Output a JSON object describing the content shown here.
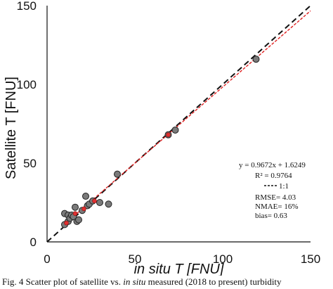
{
  "chart_data": {
    "type": "scatter",
    "xlabel": "in situ T [FNU]",
    "ylabel": "Satellite T [FNU]",
    "xlim": [
      0,
      150
    ],
    "ylim": [
      0,
      150
    ],
    "xticks": [
      "0",
      "50",
      "100",
      "150"
    ],
    "yticks": [
      "0",
      "50",
      "100",
      "150"
    ],
    "grid": false,
    "points": [
      {
        "x": 10,
        "y": 11
      },
      {
        "x": 10,
        "y": 18
      },
      {
        "x": 12,
        "y": 17
      },
      {
        "x": 12,
        "y": 13
      },
      {
        "x": 13,
        "y": 15
      },
      {
        "x": 14,
        "y": 17
      },
      {
        "x": 15,
        "y": 16
      },
      {
        "x": 16,
        "y": 22
      },
      {
        "x": 17,
        "y": 13
      },
      {
        "x": 18,
        "y": 14
      },
      {
        "x": 20,
        "y": 20
      },
      {
        "x": 22,
        "y": 29
      },
      {
        "x": 23,
        "y": 23
      },
      {
        "x": 24,
        "y": 24
      },
      {
        "x": 26,
        "y": 26
      },
      {
        "x": 30,
        "y": 25
      },
      {
        "x": 35,
        "y": 24
      },
      {
        "x": 40,
        "y": 43
      },
      {
        "x": 69,
        "y": 68
      },
      {
        "x": 73,
        "y": 71
      },
      {
        "x": 119,
        "y": 116
      }
    ],
    "red_points": [
      {
        "x": 11,
        "y": 12
      },
      {
        "x": 16,
        "y": 18
      },
      {
        "x": 21,
        "y": 21
      },
      {
        "x": 27,
        "y": 26
      },
      {
        "x": 69,
        "y": 68
      }
    ],
    "fit_line": {
      "slope": 0.9672,
      "intercept": 1.6249,
      "x_range": [
        10,
        150
      ],
      "color": "#e02020"
    },
    "one_to_one": {
      "x_range": [
        0,
        150
      ],
      "color": "#111111"
    },
    "stats": {
      "equation": "y = 0.9672x + 1.6249",
      "r2": "R² = 0.9764",
      "one_to_one_label": "1:1",
      "rmse": "RMSE= 4.03",
      "nmae": "NMAE= 16%",
      "bias": "bias= 0.63"
    },
    "colors": {
      "point_fill": "#7a7a7a",
      "point_stroke": "#222222",
      "red_point": "#e03030"
    }
  },
  "caption": {
    "part1": "Fig. 4 Scatter plot of satellite vs.",
    "part2": "in situ",
    "part3": "measured (2018 to present) turbidity"
  }
}
